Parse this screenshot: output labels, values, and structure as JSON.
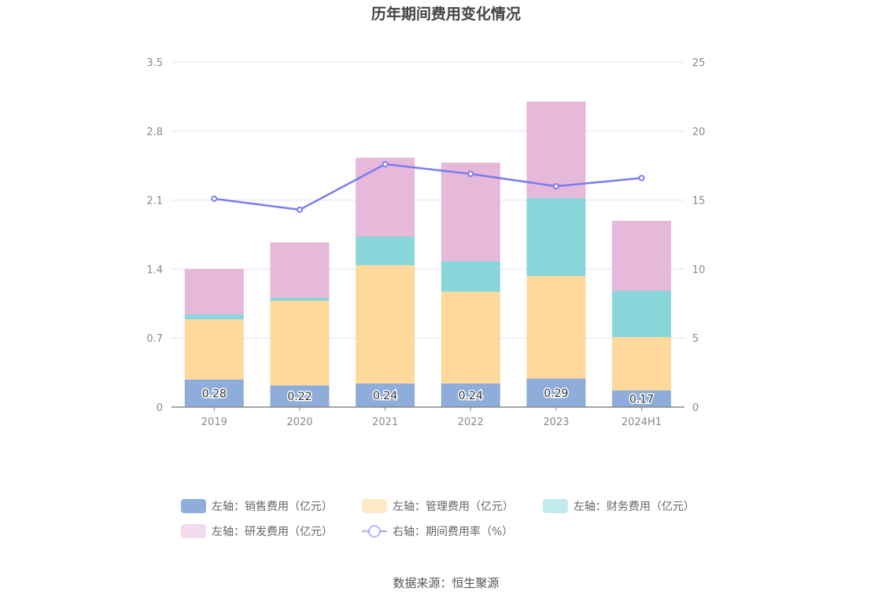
{
  "chart_data": {
    "type": "bar",
    "title": "历年期间费用变化情况",
    "categories": [
      "2019",
      "2020",
      "2021",
      "2022",
      "2023",
      "2024H1"
    ],
    "left_axis": {
      "ylim": [
        0,
        3.5
      ],
      "ticks": [
        "0",
        "0.7",
        "1.4",
        "2.1",
        "2.8",
        "3.5"
      ]
    },
    "right_axis": {
      "ylim": [
        0,
        25
      ],
      "ticks": [
        "0",
        "5",
        "10",
        "15",
        "20",
        "25"
      ]
    },
    "stacked_series": [
      {
        "name": "左轴：销售费用（亿元）",
        "color": "#8eadda",
        "values": [
          0.28,
          0.22,
          0.24,
          0.24,
          0.29,
          0.17
        ]
      },
      {
        "name": "左轴：管理费用（亿元）",
        "color": "#fed99b",
        "values": [
          0.61,
          0.86,
          1.2,
          0.93,
          1.04,
          0.54
        ]
      },
      {
        "name": "左轴：财务费用（亿元）",
        "color": "#88d6da",
        "values": [
          0.05,
          0.03,
          0.29,
          0.31,
          0.79,
          0.47
        ]
      },
      {
        "name": "左轴：研发费用（亿元）",
        "color": "#e6b8d9",
        "values": [
          0.46,
          0.56,
          0.8,
          1.0,
          0.98,
          0.71
        ]
      }
    ],
    "line_series": {
      "name": "右轴：期间费用率（%）",
      "color": "#7b7cf0",
      "values": [
        15.1,
        14.3,
        17.6,
        16.9,
        16.0,
        16.6
      ]
    },
    "data_labels": [
      "0.28",
      "0.22",
      "0.24",
      "0.24",
      "0.29",
      "0.17"
    ],
    "grid": true,
    "legend_position": "bottom"
  },
  "source": "数据来源：恒生聚源"
}
